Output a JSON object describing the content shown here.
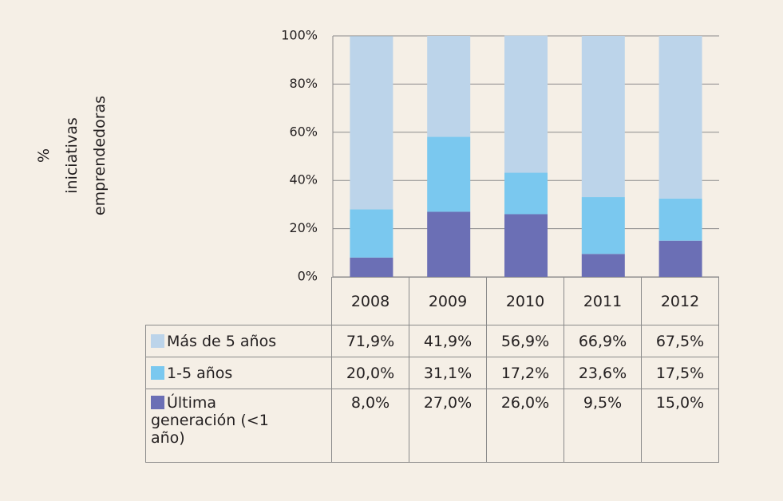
{
  "chart_data": {
    "type": "stacked_bar",
    "ylabel": [
      "%",
      "iniciativas",
      "emprendedoras"
    ],
    "categories": [
      "2008",
      "2009",
      "2010",
      "2011",
      "2012"
    ],
    "series": [
      {
        "name": "Más de 5 años",
        "color": "#bcd4ea",
        "values": [
          71.9,
          41.9,
          56.9,
          66.9,
          67.5
        ],
        "value_labels": [
          "71,9%",
          "41,9%",
          "56,9%",
          "66,9%",
          "67,5%"
        ]
      },
      {
        "name": "1-5 años",
        "color": "#7ac8ef",
        "values": [
          20.0,
          31.1,
          17.2,
          23.6,
          17.5
        ],
        "value_labels": [
          "20,0%",
          "31,1%",
          "17,2%",
          "23,6%",
          "17,5%"
        ]
      },
      {
        "name": "Última generación (<1 año)",
        "color": "#6b6fb5",
        "values": [
          8.0,
          27.0,
          26.0,
          9.5,
          15.0
        ],
        "value_labels": [
          "8,0%",
          "27,0%",
          "26,0%",
          "9,5%",
          "15,0%"
        ]
      }
    ],
    "ylim": [
      0,
      100
    ],
    "yticks": [
      {
        "value": 0,
        "label": "0%"
      },
      {
        "value": 20,
        "label": "20%"
      },
      {
        "value": 40,
        "label": "40%"
      },
      {
        "value": 60,
        "label": "60%"
      },
      {
        "value": 80,
        "label": "80%"
      },
      {
        "value": 100,
        "label": "100%"
      }
    ],
    "grid": true
  }
}
